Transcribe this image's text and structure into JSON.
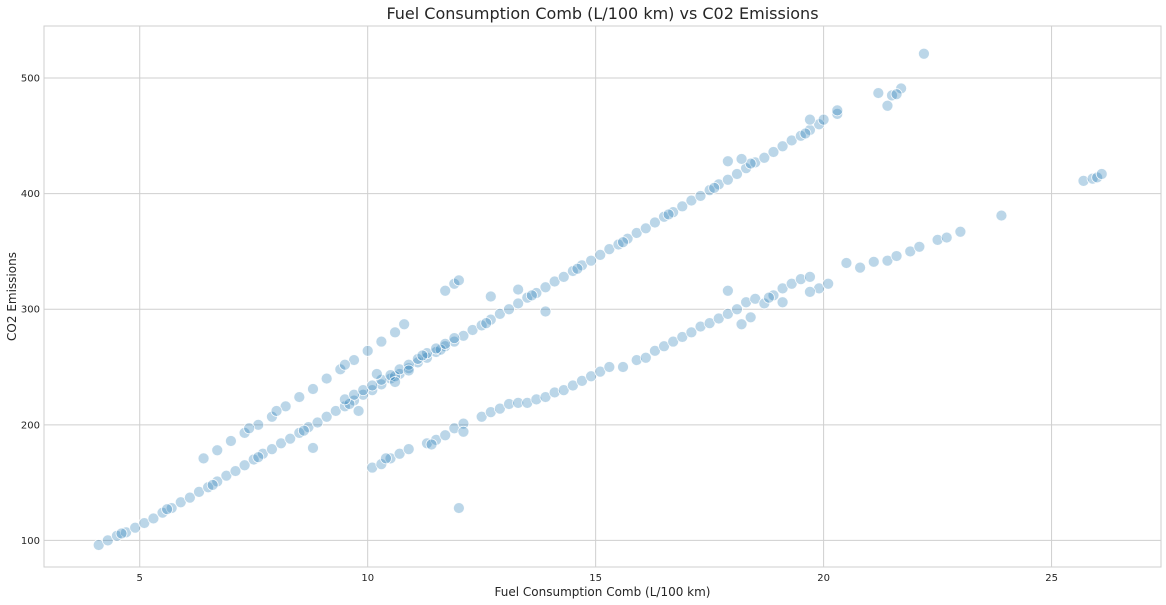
{
  "chart_data": {
    "type": "scatter",
    "title": "Fuel Consumption Comb (L/100 km) vs C02 Emissions",
    "xlabel": "Fuel Consumption Comb (L/100 km)",
    "ylabel": "CO2 Emissions",
    "xlim": [
      2.9,
      27.4
    ],
    "ylim": [
      77,
      545
    ],
    "xticks": [
      5,
      10,
      15,
      20,
      25
    ],
    "yticks": [
      100,
      200,
      300,
      400,
      500
    ],
    "grid": true,
    "marker_color": "#1f77b4",
    "marker_alpha": 0.3,
    "series": [
      {
        "name": "",
        "points": [
          [
            4.1,
            96
          ],
          [
            4.3,
            100
          ],
          [
            4.5,
            104
          ],
          [
            4.7,
            107
          ],
          [
            4.9,
            111
          ],
          [
            5.1,
            115
          ],
          [
            5.3,
            119
          ],
          [
            5.5,
            124
          ],
          [
            5.7,
            128
          ],
          [
            5.9,
            133
          ],
          [
            6.1,
            137
          ],
          [
            6.3,
            142
          ],
          [
            6.5,
            146
          ],
          [
            6.7,
            151
          ],
          [
            6.9,
            156
          ],
          [
            7.1,
            160
          ],
          [
            7.3,
            165
          ],
          [
            7.5,
            170
          ],
          [
            7.7,
            175
          ],
          [
            7.9,
            179
          ],
          [
            8.1,
            184
          ],
          [
            8.3,
            188
          ],
          [
            8.5,
            193
          ],
          [
            8.7,
            198
          ],
          [
            8.9,
            202
          ],
          [
            9.1,
            207
          ],
          [
            9.3,
            212
          ],
          [
            9.5,
            216
          ],
          [
            9.7,
            221
          ],
          [
            9.9,
            226
          ],
          [
            10.1,
            230
          ],
          [
            10.3,
            235
          ],
          [
            10.5,
            240
          ],
          [
            10.7,
            244
          ],
          [
            10.9,
            249
          ],
          [
            11.1,
            254
          ],
          [
            11.3,
            258
          ],
          [
            11.5,
            263
          ],
          [
            11.7,
            268
          ],
          [
            11.9,
            272
          ],
          [
            12.1,
            277
          ],
          [
            12.3,
            282
          ],
          [
            12.5,
            286
          ],
          [
            12.7,
            291
          ],
          [
            12.9,
            296
          ],
          [
            13.1,
            300
          ],
          [
            13.3,
            305
          ],
          [
            13.5,
            310
          ],
          [
            13.7,
            314
          ],
          [
            13.9,
            319
          ],
          [
            14.1,
            324
          ],
          [
            14.3,
            328
          ],
          [
            14.5,
            333
          ],
          [
            14.7,
            338
          ],
          [
            14.9,
            342
          ],
          [
            15.1,
            347
          ],
          [
            15.3,
            352
          ],
          [
            15.5,
            356
          ],
          [
            15.7,
            361
          ],
          [
            15.9,
            366
          ],
          [
            16.1,
            370
          ],
          [
            16.3,
            375
          ],
          [
            16.5,
            380
          ],
          [
            16.7,
            384
          ],
          [
            16.9,
            389
          ],
          [
            17.1,
            394
          ],
          [
            17.3,
            398
          ],
          [
            17.5,
            403
          ],
          [
            17.7,
            408
          ],
          [
            17.9,
            412
          ],
          [
            18.1,
            417
          ],
          [
            18.3,
            422
          ],
          [
            18.5,
            427
          ],
          [
            18.7,
            431
          ],
          [
            18.9,
            436
          ],
          [
            19.1,
            441
          ],
          [
            19.3,
            446
          ],
          [
            19.5,
            450
          ],
          [
            19.7,
            455
          ],
          [
            19.9,
            460
          ],
          [
            20.3,
            469
          ],
          [
            4.6,
            106
          ],
          [
            5.6,
            127
          ],
          [
            6.6,
            148
          ],
          [
            7.6,
            172
          ],
          [
            8.6,
            195
          ],
          [
            9.6,
            218
          ],
          [
            10.6,
            242
          ],
          [
            11.6,
            265
          ],
          [
            12.6,
            288
          ],
          [
            13.6,
            312
          ],
          [
            14.6,
            335
          ],
          [
            15.6,
            358
          ],
          [
            16.6,
            382
          ],
          [
            17.6,
            405
          ],
          [
            6.4,
            171
          ],
          [
            6.7,
            178
          ],
          [
            7.0,
            186
          ],
          [
            7.3,
            193
          ],
          [
            7.6,
            200
          ],
          [
            7.9,
            207
          ],
          [
            8.2,
            216
          ],
          [
            8.5,
            224
          ],
          [
            8.8,
            231
          ],
          [
            9.1,
            240
          ],
          [
            9.4,
            248
          ],
          [
            9.7,
            256
          ],
          [
            10.0,
            264
          ],
          [
            10.3,
            272
          ],
          [
            10.6,
            280
          ],
          [
            10.8,
            287
          ],
          [
            9.5,
            252
          ],
          [
            8.0,
            212
          ],
          [
            7.4,
            197
          ],
          [
            11.9,
            322
          ],
          [
            12.0,
            325
          ],
          [
            11.7,
            316
          ],
          [
            12.7,
            311
          ],
          [
            13.3,
            317
          ],
          [
            9.5,
            222
          ],
          [
            9.7,
            226
          ],
          [
            9.9,
            230
          ],
          [
            10.1,
            234
          ],
          [
            10.3,
            239
          ],
          [
            10.5,
            243
          ],
          [
            10.7,
            248
          ],
          [
            10.9,
            252
          ],
          [
            11.1,
            257
          ],
          [
            11.3,
            262
          ],
          [
            11.5,
            266
          ],
          [
            11.7,
            270
          ],
          [
            11.9,
            275
          ],
          [
            10.2,
            244
          ],
          [
            10.6,
            237
          ],
          [
            11.2,
            260
          ],
          [
            10.9,
            247
          ],
          [
            9.8,
            212
          ],
          [
            8.8,
            180
          ],
          [
            13.9,
            298
          ],
          [
            10.1,
            163
          ],
          [
            10.3,
            166
          ],
          [
            10.5,
            171
          ],
          [
            10.7,
            175
          ],
          [
            10.9,
            179
          ],
          [
            11.3,
            184
          ],
          [
            11.5,
            187
          ],
          [
            11.7,
            191
          ],
          [
            11.9,
            197
          ],
          [
            12.1,
            201
          ],
          [
            12.5,
            207
          ],
          [
            12.7,
            211
          ],
          [
            12.9,
            214
          ],
          [
            13.1,
            218
          ],
          [
            13.3,
            219
          ],
          [
            13.5,
            219
          ],
          [
            13.7,
            222
          ],
          [
            13.9,
            224
          ],
          [
            14.1,
            228
          ],
          [
            14.3,
            230
          ],
          [
            14.5,
            234
          ],
          [
            14.7,
            238
          ],
          [
            14.9,
            242
          ],
          [
            15.1,
            246
          ],
          [
            15.3,
            250
          ],
          [
            12.0,
            128
          ],
          [
            12.1,
            194
          ],
          [
            11.4,
            183
          ],
          [
            10.4,
            171
          ],
          [
            15.6,
            250
          ],
          [
            15.9,
            256
          ],
          [
            16.1,
            258
          ],
          [
            16.3,
            264
          ],
          [
            16.5,
            268
          ],
          [
            16.7,
            272
          ],
          [
            16.9,
            276
          ],
          [
            17.1,
            280
          ],
          [
            17.3,
            285
          ],
          [
            17.5,
            288
          ],
          [
            17.7,
            292
          ],
          [
            17.9,
            296
          ],
          [
            18.1,
            300
          ],
          [
            18.3,
            306
          ],
          [
            18.5,
            309
          ],
          [
            18.7,
            305
          ],
          [
            18.9,
            312
          ],
          [
            19.1,
            318
          ],
          [
            19.3,
            322
          ],
          [
            19.5,
            326
          ],
          [
            19.7,
            328
          ],
          [
            19.9,
            318
          ],
          [
            20.1,
            322
          ],
          [
            18.4,
            293
          ],
          [
            17.9,
            316
          ],
          [
            18.2,
            287
          ],
          [
            18.8,
            310
          ],
          [
            19.1,
            306
          ],
          [
            19.7,
            315
          ],
          [
            20.5,
            340
          ],
          [
            20.8,
            336
          ],
          [
            21.1,
            341
          ],
          [
            21.4,
            342
          ],
          [
            21.6,
            346
          ],
          [
            21.9,
            350
          ],
          [
            22.1,
            354
          ],
          [
            22.5,
            360
          ],
          [
            22.7,
            362
          ],
          [
            23.0,
            367
          ],
          [
            23.9,
            381
          ],
          [
            25.7,
            411
          ],
          [
            25.9,
            413
          ],
          [
            26.0,
            414
          ],
          [
            26.1,
            417
          ],
          [
            21.2,
            487
          ],
          [
            21.4,
            476
          ],
          [
            21.5,
            485
          ],
          [
            21.7,
            491
          ],
          [
            22.2,
            521
          ],
          [
            21.6,
            486
          ],
          [
            20.0,
            464
          ],
          [
            19.7,
            464
          ],
          [
            19.6,
            452
          ],
          [
            20.3,
            472
          ],
          [
            17.9,
            428
          ],
          [
            18.4,
            426
          ],
          [
            18.2,
            430
          ]
        ]
      }
    ]
  }
}
